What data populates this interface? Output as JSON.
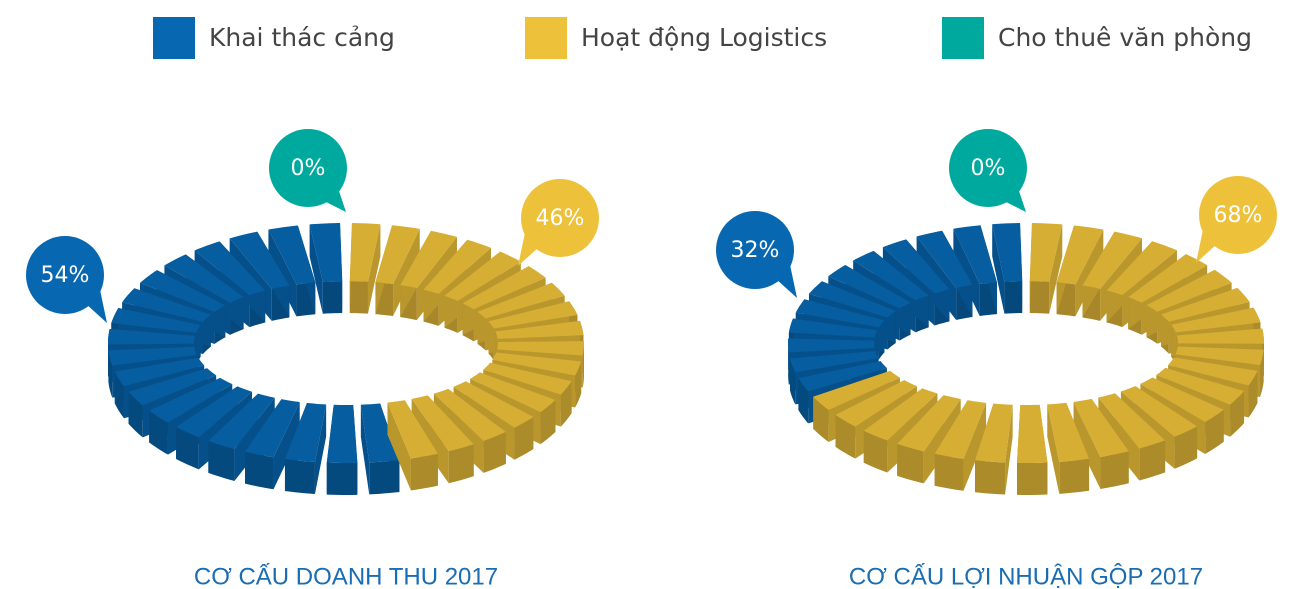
{
  "legend": {
    "categories": [
      "Khai thác cảng",
      "Hoạt động Logistics",
      "Cho thuê văn phòng"
    ],
    "colors": [
      "#0767b1",
      "#eec13a",
      "#00a99d"
    ]
  },
  "chart_data": [
    {
      "type": "pie",
      "title": "CƠ CẤU DOANH THU 2017",
      "values": [
        54,
        46,
        0
      ],
      "value_labels": [
        "54%",
        "46%",
        "0%"
      ]
    },
    {
      "type": "pie",
      "title": "CƠ CẤU LỢI NHUẬN GỘP 2017",
      "values": [
        32,
        68,
        0
      ],
      "value_labels": [
        "32%",
        "68%",
        "0%"
      ]
    }
  ]
}
